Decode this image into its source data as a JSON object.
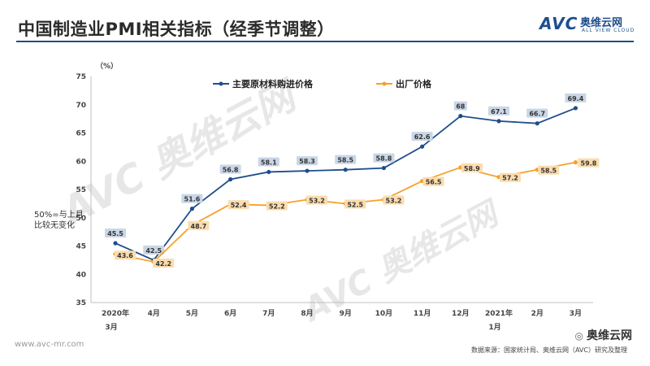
{
  "header": {
    "title": "中国制造业PMI相关指标（经季节调整）",
    "logo_mark": "AVC",
    "logo_cn": "奥维云网",
    "logo_en": "ALL VIEW CLOUD"
  },
  "side_note": "50%=与上月\n比较无变化",
  "watermark": "AVC 奥维云网",
  "footer": {
    "site": "www.avc-mr.com",
    "wechat_name": "奥维云网",
    "source": "数据来源：国家统计局、奥维云网（AVC）研究及整理"
  },
  "colors": {
    "series1": "#1f4e8c",
    "series2": "#f5a12b",
    "label1_bg": "#c9d6e6",
    "label2_bg": "#fbdcae"
  },
  "chart_data": {
    "type": "line",
    "ylabel": "（%）",
    "ylim": [
      35,
      75
    ],
    "yticks": [
      35,
      40,
      45,
      50,
      55,
      60,
      65,
      70,
      75
    ],
    "categories": [
      [
        "2020年",
        "3月"
      ],
      [
        "4月"
      ],
      [
        "5月"
      ],
      [
        "6月"
      ],
      [
        "7月"
      ],
      [
        "8月"
      ],
      [
        "9月"
      ],
      [
        "10月"
      ],
      [
        "11月"
      ],
      [
        "12月"
      ],
      [
        "2021年",
        "1月"
      ],
      [
        "2月"
      ],
      [
        "3月"
      ]
    ],
    "series": [
      {
        "name": "主要原材料购进价格",
        "values": [
          45.5,
          42.5,
          51.6,
          56.8,
          58.1,
          58.3,
          58.5,
          58.8,
          62.6,
          68,
          67.1,
          66.7,
          69.4
        ]
      },
      {
        "name": "出厂价格",
        "values": [
          43.6,
          42.2,
          48.7,
          52.4,
          52.2,
          53.2,
          52.5,
          53.2,
          56.5,
          58.9,
          57.2,
          58.5,
          59.8
        ]
      }
    ],
    "grid": false,
    "legend_position": "top"
  }
}
